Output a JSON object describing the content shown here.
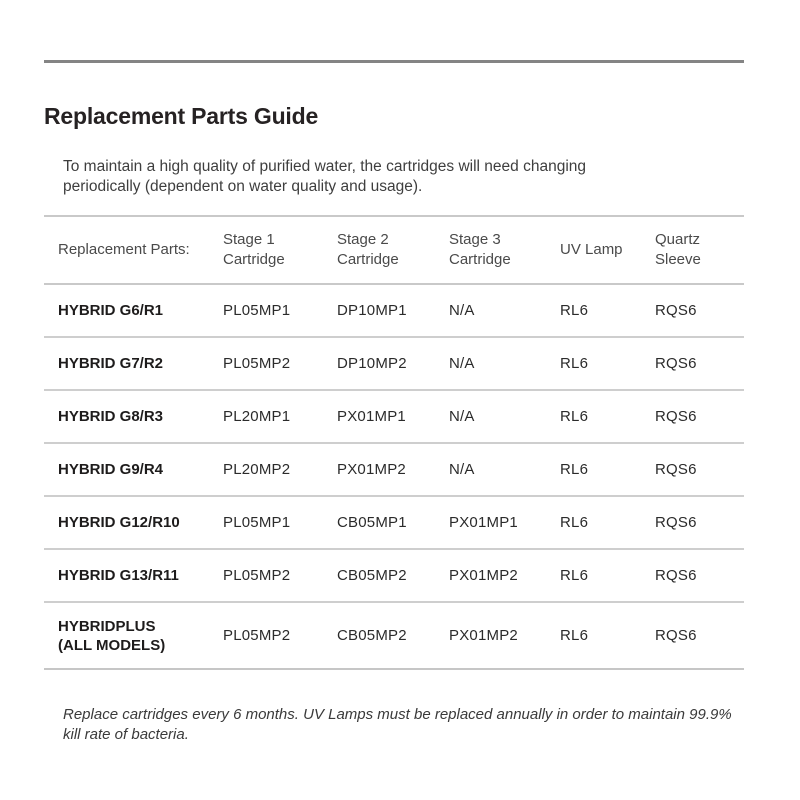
{
  "page": {
    "title": "Replacement Parts Guide",
    "intro": "To maintain a high quality of purified water, the cartridges will need changing\nperiodically (dependent on water quality and usage).",
    "footnote": "Replace cartridges every 6 months. UV Lamps must be replaced annually in order to maintain 99.9%\nkill rate of bacteria."
  },
  "table": {
    "columns": [
      {
        "key": "model",
        "label": "Replacement Parts:"
      },
      {
        "key": "stage1",
        "label": "Stage 1\nCartridge"
      },
      {
        "key": "stage2",
        "label": "Stage 2\nCartridge"
      },
      {
        "key": "stage3",
        "label": "Stage 3\nCartridge"
      },
      {
        "key": "uv_lamp",
        "label": "UV Lamp"
      },
      {
        "key": "quartz_sleeve",
        "label": "Quartz\nSleeve"
      }
    ],
    "rows": [
      {
        "model": "HYBRID G6/R1",
        "stage1": "PL05MP1",
        "stage2": "DP10MP1",
        "stage3": "N/A",
        "uv_lamp": "RL6",
        "quartz_sleeve": "RQS6"
      },
      {
        "model": "HYBRID G7/R2",
        "stage1": "PL05MP2",
        "stage2": "DP10MP2",
        "stage3": "N/A",
        "uv_lamp": "RL6",
        "quartz_sleeve": "RQS6"
      },
      {
        "model": "HYBRID G8/R3",
        "stage1": "PL20MP1",
        "stage2": "PX01MP1",
        "stage3": "N/A",
        "uv_lamp": "RL6",
        "quartz_sleeve": "RQS6"
      },
      {
        "model": "HYBRID G9/R4",
        "stage1": "PL20MP2",
        "stage2": "PX01MP2",
        "stage3": "N/A",
        "uv_lamp": "RL6",
        "quartz_sleeve": "RQS6"
      },
      {
        "model": "HYBRID G12/R10",
        "stage1": "PL05MP1",
        "stage2": "CB05MP1",
        "stage3": "PX01MP1",
        "uv_lamp": "RL6",
        "quartz_sleeve": "RQS6"
      },
      {
        "model": "HYBRID G13/R11",
        "stage1": "PL05MP2",
        "stage2": "CB05MP2",
        "stage3": "PX01MP2",
        "uv_lamp": "RL6",
        "quartz_sleeve": "RQS6"
      },
      {
        "model": "HYBRIDPLUS\n(ALL MODELS)",
        "stage1": "PL05MP2",
        "stage2": "CB05MP2",
        "stage3": "PX01MP2",
        "uv_lamp": "RL6",
        "quartz_sleeve": "RQS6"
      }
    ]
  },
  "colors": {
    "page_background": "#ffffff",
    "top_rule": "#848484",
    "table_rule": "#c9c9c9",
    "title_text": "#262223",
    "body_text": "#3e3e3e",
    "model_text": "#1e1c1c",
    "cell_text": "#2b2b2b"
  }
}
